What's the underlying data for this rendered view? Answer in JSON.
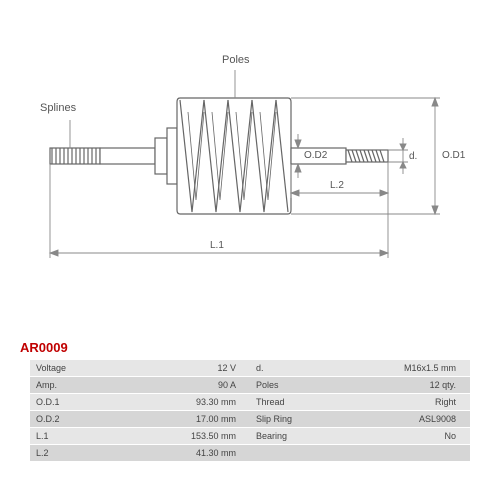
{
  "diagram": {
    "labels": {
      "splines": "Splines",
      "poles": "Poles",
      "od1": "O.D1",
      "od2": "O.D2",
      "d": "d.",
      "l1": "L.1",
      "l2": "L.2"
    },
    "colors": {
      "stroke": "#666666",
      "dim_stroke": "#888888",
      "background": "#ffffff"
    },
    "stroke_width": 1.2
  },
  "part_number": "AR0009",
  "specs": {
    "left": [
      {
        "label": "Voltage",
        "value": "12 V"
      },
      {
        "label": "Amp.",
        "value": "90 A"
      },
      {
        "label": "O.D.1",
        "value": "93.30 mm"
      },
      {
        "label": "O.D.2",
        "value": "17.00 mm"
      },
      {
        "label": "L.1",
        "value": "153.50 mm"
      },
      {
        "label": "L.2",
        "value": "41.30 mm"
      }
    ],
    "right": [
      {
        "label": "d.",
        "value": "M16x1.5 mm"
      },
      {
        "label": "Poles",
        "value": "12 qty."
      },
      {
        "label": "Thread",
        "value": "Right"
      },
      {
        "label": "Slip Ring",
        "value": "ASL9008"
      },
      {
        "label": "Bearing",
        "value": "No"
      },
      {
        "label": "",
        "value": ""
      }
    ]
  }
}
